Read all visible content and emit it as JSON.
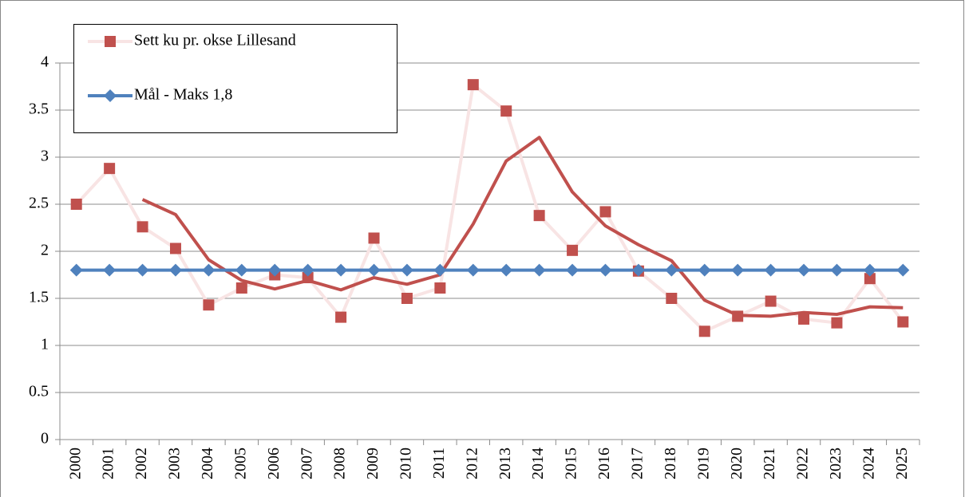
{
  "chart_data": {
    "type": "line",
    "categories": [
      "2000",
      "2001",
      "2002",
      "2003",
      "2004",
      "2005",
      "2006",
      "2007",
      "2008",
      "2009",
      "2010",
      "2011",
      "2012",
      "2013",
      "2014",
      "2015",
      "2016",
      "2017",
      "2018",
      "2019",
      "2020",
      "2021",
      "2022",
      "2023",
      "2024",
      "2025"
    ],
    "series": [
      {
        "name": "Sett ku pr. okse Lillesand",
        "color": "#c0504d",
        "line_color": "#f8e4e4",
        "marker": "square",
        "values": [
          2.5,
          2.88,
          2.26,
          2.03,
          1.43,
          1.61,
          1.75,
          1.72,
          1.3,
          2.14,
          1.5,
          1.61,
          3.77,
          3.49,
          2.38,
          2.01,
          2.42,
          1.79,
          1.5,
          1.15,
          1.31,
          1.47,
          1.28,
          1.24,
          1.71,
          1.25
        ]
      },
      {
        "name": "Mål - Maks 1,8",
        "color": "#4f81bd",
        "line_color": "#4f81bd",
        "marker": "diamond",
        "values": [
          1.8,
          1.8,
          1.8,
          1.8,
          1.8,
          1.8,
          1.8,
          1.8,
          1.8,
          1.8,
          1.8,
          1.8,
          1.8,
          1.8,
          1.8,
          1.8,
          1.8,
          1.8,
          1.8,
          1.8,
          1.8,
          1.8,
          1.8,
          1.8,
          1.8,
          1.8
        ]
      }
    ],
    "trendline": {
      "color": "#c0504d",
      "values": [
        null,
        null,
        2.55,
        2.39,
        1.91,
        1.69,
        1.6,
        1.69,
        1.59,
        1.72,
        1.65,
        1.75,
        2.29,
        2.96,
        3.21,
        2.63,
        2.27,
        2.07,
        1.9,
        1.48,
        1.32,
        1.31,
        1.35,
        1.33,
        1.41,
        1.4
      ]
    },
    "ylim": [
      0,
      4
    ],
    "yticks": [
      0,
      0.5,
      1,
      1.5,
      2,
      2.5,
      3,
      3.5,
      4
    ],
    "grid": true,
    "legend": "top-left"
  }
}
